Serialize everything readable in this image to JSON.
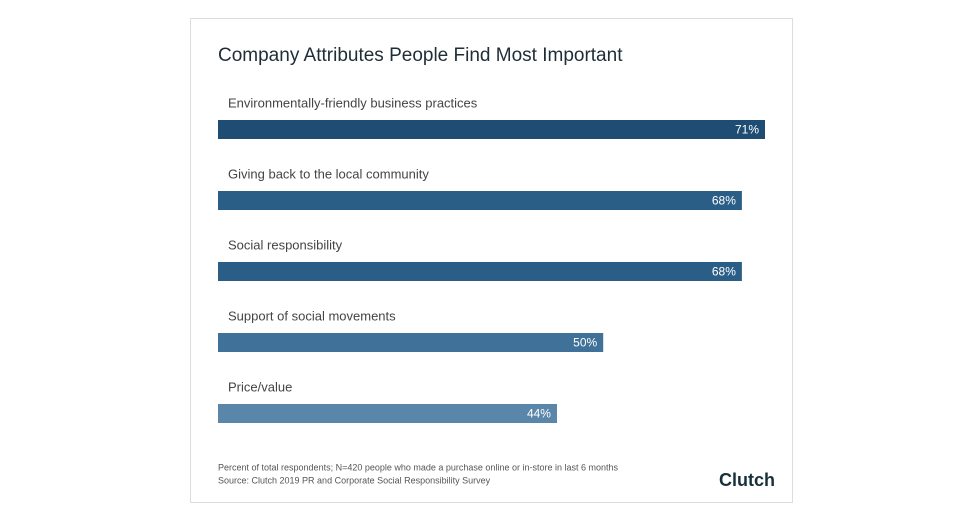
{
  "chart_data": {
    "type": "bar",
    "orientation": "horizontal",
    "title": "Company Attributes People Find Most Important",
    "categories": [
      "Environmentally-friendly business practices",
      "Giving back to the local community",
      "Social responsibility",
      "Support of social movements",
      "Price/value"
    ],
    "values": [
      71,
      68,
      68,
      50,
      44
    ],
    "value_labels": [
      "71%",
      "68%",
      "68%",
      "50%",
      "44%"
    ],
    "colors": [
      "#1e4c73",
      "#2b5e87",
      "#2b5e87",
      "#3f7199",
      "#5a86aa"
    ],
    "footnotes": [
      "Percent of total respondents; N=420 people who made a purchase online or in-store in last 6 months",
      "Source: Clutch 2019 PR and Corporate Social Responsibility Survey"
    ]
  },
  "brand": "Clutch"
}
